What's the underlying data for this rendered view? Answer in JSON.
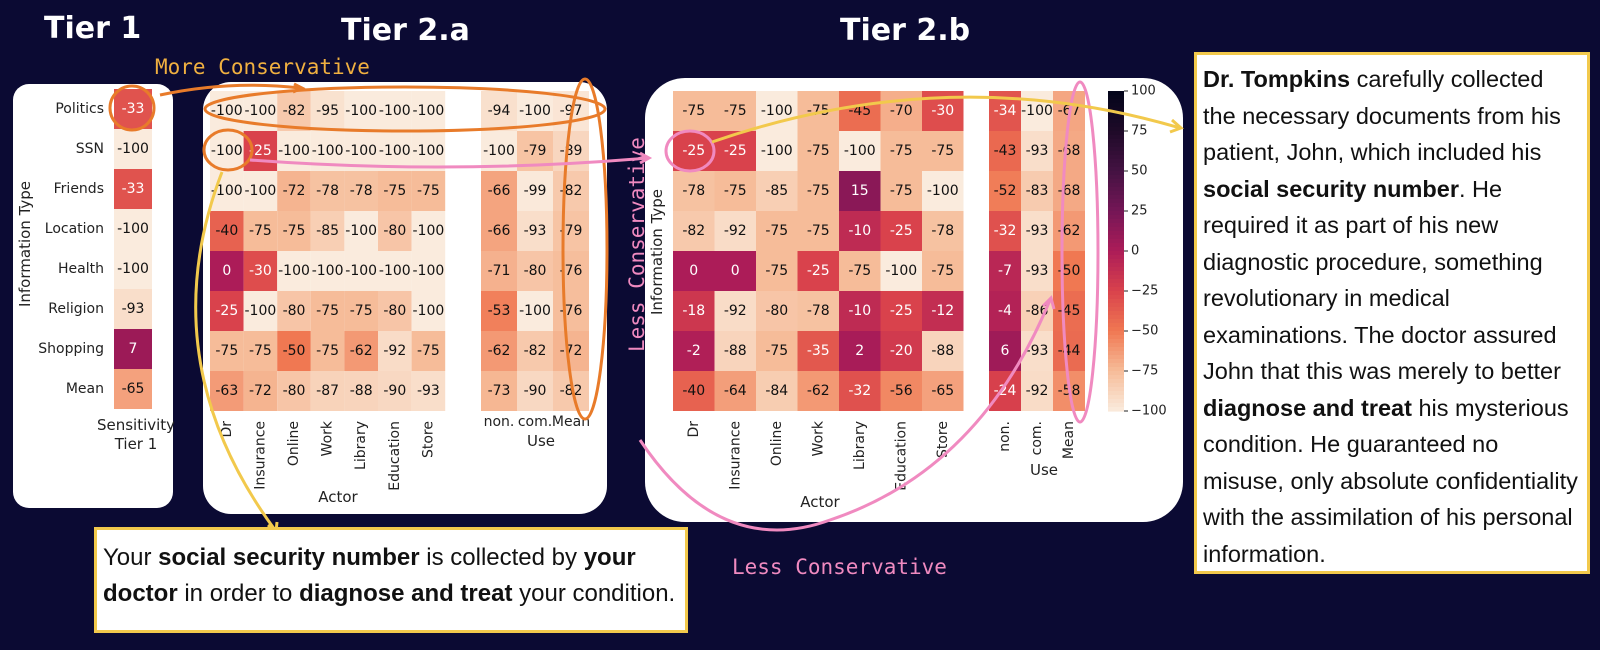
{
  "titles": {
    "tier1": "Tier 1",
    "tier2a": "Tier 2.a",
    "tier2b": "Tier 2.b"
  },
  "annotations": {
    "more_conservative": "More Conservative",
    "less_conservative_vertical": "Less Conservative",
    "less_conservative_bottom": "Less Conservative"
  },
  "colors": {
    "background": "#0b0a33",
    "highlight_orange": "#e87b2a",
    "highlight_pink": "#f08ac0",
    "highlight_yellow": "#f2c94c",
    "label_orange": "#f0b040",
    "label_pink": "#f08ac0"
  },
  "chart_data": [
    {
      "type": "heatmap",
      "id": "tier1",
      "rows": [
        "Politics",
        "SSN",
        "Friends",
        "Location",
        "Health",
        "Religion",
        "Shopping",
        "Mean"
      ],
      "columns": [
        "Sensitivity"
      ],
      "values": [
        [
          -33
        ],
        [
          -100
        ],
        [
          -33
        ],
        [
          -100
        ],
        [
          -100
        ],
        [
          -93
        ],
        [
          7
        ],
        [
          -65
        ]
      ],
      "ylabel": "Information Type",
      "xlabel": "Tier 1"
    },
    {
      "type": "heatmap",
      "id": "tier2a",
      "rows": [
        "Politics",
        "SSN",
        "Friends",
        "Location",
        "Health",
        "Religion",
        "Shopping",
        "Mean"
      ],
      "actor_columns": [
        "Dr",
        "Insurance",
        "Online",
        "Work",
        "Library",
        "Education",
        "Store"
      ],
      "actor_values": [
        [
          -100,
          -100,
          -82,
          -95,
          -100,
          -100,
          -100
        ],
        [
          -100,
          -25,
          -100,
          -100,
          -100,
          -100,
          -100
        ],
        [
          -100,
          -100,
          -72,
          -78,
          -78,
          -75,
          -75
        ],
        [
          -40,
          -75,
          -75,
          -85,
          -100,
          -80,
          -100
        ],
        [
          0,
          -30,
          -100,
          -100,
          -100,
          -100,
          -100
        ],
        [
          -25,
          -100,
          -80,
          -75,
          -75,
          -80,
          -100
        ],
        [
          -75,
          -75,
          -50,
          -75,
          -62,
          -92,
          -75
        ],
        [
          -63,
          -72,
          -80,
          -87,
          -88,
          -90,
          -93
        ]
      ],
      "use_columns": [
        "non.",
        "com.",
        "Mean"
      ],
      "use_values": [
        [
          -94,
          -100,
          -97
        ],
        [
          -100,
          -79,
          -89
        ],
        [
          -66,
          -99,
          -82
        ],
        [
          -66,
          -93,
          -79
        ],
        [
          -71,
          -80,
          -76
        ],
        [
          -53,
          -100,
          -76
        ],
        [
          -62,
          -82,
          -72
        ],
        [
          -73,
          -90,
          -82
        ]
      ],
      "xlabel": "Actor",
      "use_label": "Use"
    },
    {
      "type": "heatmap",
      "id": "tier2b",
      "rows": [
        "Politics",
        "SSN",
        "Friends",
        "Location",
        "Health",
        "Religion",
        "Shopping",
        "Mean"
      ],
      "actor_columns": [
        "Dr",
        "Insurance",
        "Online",
        "Work",
        "Library",
        "Education",
        "Store"
      ],
      "actor_values": [
        [
          -75,
          -75,
          -100,
          -75,
          -45,
          -70,
          -30
        ],
        [
          -25,
          -25,
          -100,
          -75,
          -100,
          -75,
          -75
        ],
        [
          -78,
          -75,
          -85,
          -75,
          15,
          -75,
          -100
        ],
        [
          -82,
          -92,
          -75,
          -75,
          -10,
          -25,
          -78
        ],
        [
          0,
          0,
          -75,
          -25,
          -75,
          -100,
          -75
        ],
        [
          -18,
          -92,
          -80,
          -78,
          -10,
          -25,
          -12
        ],
        [
          -2,
          -88,
          -75,
          -35,
          2,
          -20,
          -88
        ],
        [
          -40,
          -64,
          -84,
          -62,
          -32,
          -56,
          -65
        ]
      ],
      "use_columns": [
        "non.",
        "com.",
        "Mean"
      ],
      "use_values": [
        [
          -34,
          -100,
          -67
        ],
        [
          -43,
          -93,
          -68
        ],
        [
          -52,
          -83,
          -68
        ],
        [
          -32,
          -93,
          -62
        ],
        [
          -7,
          -93,
          -50
        ],
        [
          -4,
          -86,
          -45
        ],
        [
          6,
          -93,
          -44
        ],
        [
          -24,
          -92,
          -58
        ]
      ],
      "ylabel": "Information Type",
      "xlabel": "Actor",
      "use_label": "Use",
      "colorbar": {
        "ticks": [
          100,
          75,
          50,
          25,
          0,
          -25,
          -50,
          -75,
          -100
        ],
        "range": [
          -100,
          100
        ]
      }
    }
  ],
  "note_left": {
    "p1": "Your ",
    "b1": "social security number",
    "p2": " is collected by ",
    "b2": "your doctor",
    "p3": " in order to ",
    "b3": "diagnose and treat",
    "p4": " your condition."
  },
  "note_right": {
    "b1": "Dr. Tompkins",
    "p1": " carefully collected the necessary documents from his patient, John, which included his ",
    "b2": "social security number",
    "p2": ". He required it as part of his new diagnostic procedure, something revolutionary in medical examinations. The doctor assured John that this was merely to better ",
    "b3": "diagnose and treat",
    "p3": " his mysterious condition. He guaranteed no misuse, only absolute confidentiality with the assimilation of his personal information."
  }
}
